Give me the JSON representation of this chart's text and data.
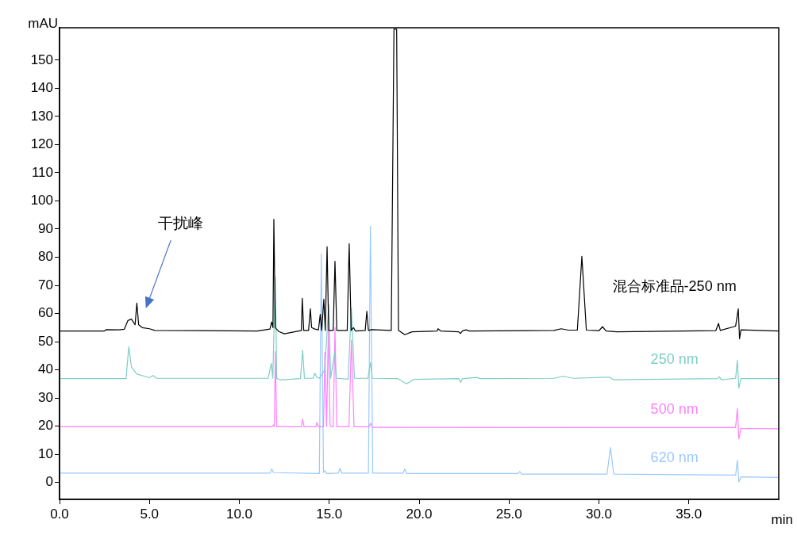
{
  "chart_data": {
    "type": "line",
    "xlabel": "min",
    "ylabel": "mAU",
    "xlim": [
      0,
      40
    ],
    "ylim": [
      -6,
      161.5
    ],
    "xticks": [
      {
        "value": 0,
        "label": "0.0"
      },
      {
        "value": 5,
        "label": "5.0"
      },
      {
        "value": 10,
        "label": "10.0"
      },
      {
        "value": 15,
        "label": "15.0"
      },
      {
        "value": 20,
        "label": "20.0"
      },
      {
        "value": 25,
        "label": "25.0"
      },
      {
        "value": 30,
        "label": "30.0"
      },
      {
        "value": 35,
        "label": "35.0"
      }
    ],
    "yticks": [
      0,
      10,
      20,
      30,
      40,
      50,
      60,
      70,
      80,
      90,
      100,
      110,
      120,
      130,
      140,
      150
    ],
    "grid": false,
    "legend": false,
    "marker": "none",
    "line_style": "solid",
    "annotations": [
      "干扰峰"
    ],
    "series": [
      {
        "name": "混合标准品-250 nm",
        "color": "#000000",
        "x": [
          0,
          2.5,
          2.6,
          3.3,
          3.6,
          3.8,
          4.0,
          4.2,
          4.3,
          4.4,
          4.6,
          5.0,
          5.3,
          11.0,
          11.7,
          11.8,
          11.87,
          11.92,
          12.0,
          12.2,
          12.5,
          13.3,
          13.45,
          13.5,
          13.58,
          13.85,
          13.95,
          14.02,
          14.2,
          14.4,
          14.5,
          14.58,
          14.7,
          14.78,
          14.88,
          14.97,
          15.22,
          15.32,
          15.42,
          16.0,
          16.11,
          16.22,
          16.35,
          16.45,
          17.0,
          17.09,
          17.18,
          17.35,
          18.45,
          18.6,
          18.75,
          18.85,
          19.2,
          19.6,
          21.0,
          21.05,
          21.2,
          22.2,
          22.3,
          22.4,
          22.6,
          22.8,
          27.5,
          27.9,
          28.3,
          28.8,
          29.05,
          29.3,
          30.0,
          30.2,
          30.4,
          31.0,
          36.5,
          36.65,
          36.75,
          37.6,
          37.75,
          37.82,
          37.9,
          40
        ],
        "values": [
          53.8,
          53.8,
          54.3,
          54.2,
          54.4,
          57.5,
          58,
          56,
          63.7,
          56,
          55,
          54.6,
          54,
          53.8,
          54.5,
          57,
          55,
          93.5,
          55,
          53.6,
          52.8,
          53.8,
          54,
          65.4,
          54,
          54,
          61.7,
          55,
          54.5,
          54.2,
          59.7,
          54,
          65.1,
          54,
          83.7,
          54,
          54,
          78.6,
          54,
          54,
          84.8,
          54,
          55,
          53.8,
          54,
          60.8,
          54,
          54.3,
          54,
          161,
          161,
          54,
          52.5,
          53.5,
          53.8,
          54.6,
          53.8,
          53.5,
          52.9,
          53.8,
          54.2,
          53.8,
          54,
          54.6,
          54.1,
          54.1,
          80.3,
          54.1,
          53.9,
          55.3,
          53.8,
          53.5,
          53.9,
          56.5,
          54,
          55.5,
          61.7,
          51,
          54.2,
          53.8
        ]
      },
      {
        "name": "250 nm",
        "color": "#7fcdc6",
        "x": [
          0,
          3.7,
          3.85,
          4.0,
          4.3,
          5.0,
          5.2,
          5.4,
          11.6,
          11.78,
          11.86,
          12.0,
          12.08,
          12.3,
          13.4,
          13.52,
          13.62,
          14.1,
          14.2,
          14.3,
          14.45,
          14.75,
          14.97,
          15.08,
          15.3,
          15.4,
          16.05,
          16.23,
          16.4,
          17.15,
          17.29,
          17.4,
          18.8,
          19.3,
          19.7,
          22.2,
          22.3,
          22.4,
          23.2,
          23.4,
          27.5,
          28.0,
          28.6,
          30.6,
          30.8,
          36.6,
          36.7,
          36.8,
          37.6,
          37.7,
          37.78,
          37.9,
          40
        ],
        "values": [
          36.9,
          36.9,
          48.2,
          41,
          38.5,
          37.2,
          38,
          37,
          37,
          42.3,
          37,
          73,
          37,
          36.4,
          36.9,
          47,
          37,
          37,
          38.8,
          37.5,
          37,
          40,
          63.1,
          37,
          46,
          37,
          36.7,
          62,
          37,
          37,
          42.6,
          37,
          36.9,
          35,
          36.6,
          36.9,
          35.5,
          36.8,
          37.3,
          36.9,
          37,
          37.7,
          37,
          37.4,
          36.5,
          36.9,
          37.6,
          36.5,
          37,
          43.4,
          33.5,
          36.9,
          36.9
        ]
      },
      {
        "name": "500 nm",
        "color": "#ff80ff",
        "x": [
          0,
          11.8,
          11.9,
          11.95,
          12.0,
          12.08,
          13.45,
          13.52,
          13.6,
          14.25,
          14.32,
          14.4,
          14.68,
          14.76,
          14.85,
          14.95,
          15.05,
          15.22,
          15.32,
          15.42,
          16.1,
          16.23,
          16.38,
          17.22,
          17.3,
          17.4,
          37.6,
          37.7,
          37.78,
          37.9,
          40
        ],
        "values": [
          19.8,
          19.8,
          20.5,
          19.8,
          46.5,
          19.8,
          19.8,
          22.5,
          19.8,
          19.8,
          21.3,
          19.8,
          19.8,
          46.2,
          20,
          54,
          20,
          19.8,
          55,
          19.8,
          19.8,
          50.5,
          19.8,
          19.8,
          21,
          19.6,
          19.5,
          26.2,
          15.5,
          19.2,
          19.1
        ]
      },
      {
        "name": "620 nm",
        "color": "#99c9ff",
        "x": [
          0,
          11.7,
          11.8,
          11.9,
          14.45,
          14.56,
          14.68,
          14.75,
          14.85,
          15.5,
          15.6,
          15.7,
          17.18,
          17.29,
          17.42,
          19.1,
          19.2,
          19.3,
          25.5,
          25.6,
          25.7,
          30.45,
          30.64,
          30.82,
          37.6,
          37.7,
          37.78,
          37.9,
          40
        ],
        "values": [
          3.3,
          3.3,
          4.8,
          3.5,
          3.2,
          81.1,
          3.5,
          4.2,
          3.2,
          3.3,
          5,
          3.3,
          3.3,
          91,
          3.3,
          3.3,
          4.8,
          3.2,
          3.2,
          3.9,
          3,
          3,
          12.4,
          3,
          2.6,
          7.9,
          0.2,
          2,
          1.8
        ]
      }
    ]
  }
}
